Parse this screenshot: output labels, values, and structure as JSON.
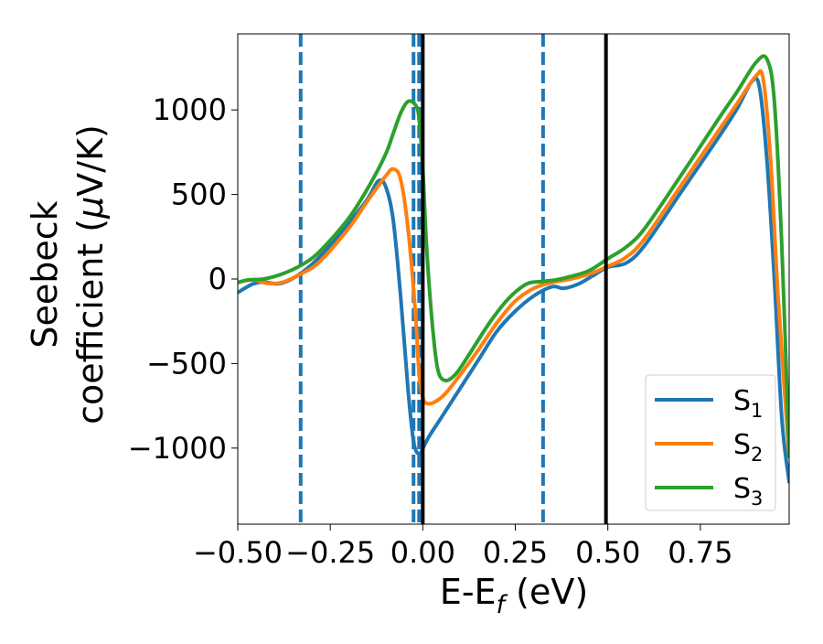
{
  "chart_data": {
    "type": "line",
    "title": "",
    "xlabel": "E-E",
    "xlabel_sub": "f",
    "xlabel_unit": " (eV)",
    "ylabel_line1": "Seebeck",
    "ylabel_line2": "coefficient  (",
    "ylabel_mu": "μ",
    "ylabel_unit": "V/K)",
    "xlim": [
      -0.5,
      0.99
    ],
    "ylim": [
      -1450,
      1450
    ],
    "xticks": [
      -0.5,
      -0.25,
      0.0,
      0.25,
      0.5,
      0.75
    ],
    "xtick_labels": [
      "−0.50",
      "−0.25",
      "0.00",
      "0.25",
      "0.50",
      "0.75"
    ],
    "yticks": [
      -1000,
      -500,
      0,
      500,
      1000
    ],
    "ytick_labels": [
      "−1000",
      "−500",
      "0",
      "500",
      "1000"
    ],
    "grid": false,
    "legend_position": "bottom-right",
    "vlines_dashed": {
      "x": [
        -0.33,
        -0.025,
        -0.01,
        0.325
      ],
      "color": "#1f77b4"
    },
    "vlines_solid": {
      "x": [
        0.0,
        0.495
      ],
      "color": "#000000"
    },
    "series": [
      {
        "name": "S",
        "sub": "1",
        "color": "#1f77b4",
        "points": [
          [
            -0.5,
            -80
          ],
          [
            -0.46,
            -30
          ],
          [
            -0.43,
            -18
          ],
          [
            -0.39,
            -28
          ],
          [
            -0.35,
            5
          ],
          [
            -0.3,
            85
          ],
          [
            -0.25,
            200
          ],
          [
            -0.2,
            330
          ],
          [
            -0.15,
            470
          ],
          [
            -0.12,
            580
          ],
          [
            -0.1,
            545
          ],
          [
            -0.08,
            350
          ],
          [
            -0.06,
            -100
          ],
          [
            -0.04,
            -650
          ],
          [
            -0.025,
            -960
          ],
          [
            -0.01,
            -1035
          ],
          [
            0.005,
            -980
          ],
          [
            0.02,
            -920
          ],
          [
            0.05,
            -820
          ],
          [
            0.1,
            -650
          ],
          [
            0.15,
            -480
          ],
          [
            0.2,
            -310
          ],
          [
            0.25,
            -190
          ],
          [
            0.3,
            -100
          ],
          [
            0.35,
            -45
          ],
          [
            0.38,
            -55
          ],
          [
            0.42,
            -30
          ],
          [
            0.46,
            20
          ],
          [
            0.5,
            70
          ],
          [
            0.55,
            95
          ],
          [
            0.6,
            200
          ],
          [
            0.7,
            520
          ],
          [
            0.8,
            840
          ],
          [
            0.85,
            1010
          ],
          [
            0.89,
            1170
          ],
          [
            0.91,
            1130
          ],
          [
            0.93,
            700
          ],
          [
            0.95,
            0
          ],
          [
            0.97,
            -820
          ],
          [
            0.99,
            -1200
          ]
        ]
      },
      {
        "name": "S",
        "sub": "2",
        "color": "#ff7f0e",
        "points": [
          [
            -0.5,
            -20
          ],
          [
            -0.46,
            -5
          ],
          [
            -0.42,
            -25
          ],
          [
            -0.38,
            -20
          ],
          [
            -0.33,
            30
          ],
          [
            -0.28,
            100
          ],
          [
            -0.2,
            300
          ],
          [
            -0.15,
            460
          ],
          [
            -0.1,
            610
          ],
          [
            -0.08,
            650
          ],
          [
            -0.06,
            590
          ],
          [
            -0.04,
            300
          ],
          [
            -0.02,
            -200
          ],
          [
            -0.01,
            -560
          ],
          [
            0.0,
            -700
          ],
          [
            0.01,
            -735
          ],
          [
            0.03,
            -730
          ],
          [
            0.06,
            -680
          ],
          [
            0.1,
            -570
          ],
          [
            0.15,
            -420
          ],
          [
            0.2,
            -260
          ],
          [
            0.25,
            -130
          ],
          [
            0.3,
            -55
          ],
          [
            0.35,
            -20
          ],
          [
            0.4,
            0
          ],
          [
            0.45,
            30
          ],
          [
            0.5,
            75
          ],
          [
            0.55,
            130
          ],
          [
            0.6,
            240
          ],
          [
            0.7,
            560
          ],
          [
            0.8,
            880
          ],
          [
            0.85,
            1040
          ],
          [
            0.9,
            1200
          ],
          [
            0.92,
            1180
          ],
          [
            0.94,
            700
          ],
          [
            0.96,
            -100
          ],
          [
            0.99,
            -1050
          ]
        ]
      },
      {
        "name": "S",
        "sub": "3",
        "color": "#2ca02c",
        "points": [
          [
            -0.5,
            -20
          ],
          [
            -0.47,
            -5
          ],
          [
            -0.43,
            0
          ],
          [
            -0.38,
            30
          ],
          [
            -0.33,
            80
          ],
          [
            -0.28,
            160
          ],
          [
            -0.2,
            360
          ],
          [
            -0.14,
            570
          ],
          [
            -0.1,
            740
          ],
          [
            -0.08,
            860
          ],
          [
            -0.06,
            980
          ],
          [
            -0.04,
            1050
          ],
          [
            -0.02,
            1030
          ],
          [
            -0.01,
            950
          ],
          [
            0.0,
            650
          ],
          [
            0.01,
            200
          ],
          [
            0.025,
            -250
          ],
          [
            0.04,
            -530
          ],
          [
            0.06,
            -600
          ],
          [
            0.09,
            -560
          ],
          [
            0.13,
            -430
          ],
          [
            0.18,
            -260
          ],
          [
            0.23,
            -120
          ],
          [
            0.28,
            -30
          ],
          [
            0.32,
            -15
          ],
          [
            0.36,
            -5
          ],
          [
            0.4,
            15
          ],
          [
            0.45,
            50
          ],
          [
            0.5,
            120
          ],
          [
            0.55,
            190
          ],
          [
            0.6,
            300
          ],
          [
            0.7,
            620
          ],
          [
            0.8,
            950
          ],
          [
            0.85,
            1110
          ],
          [
            0.9,
            1280
          ],
          [
            0.93,
            1300
          ],
          [
            0.95,
            1050
          ],
          [
            0.97,
            200
          ],
          [
            0.99,
            -1050
          ]
        ]
      }
    ]
  }
}
